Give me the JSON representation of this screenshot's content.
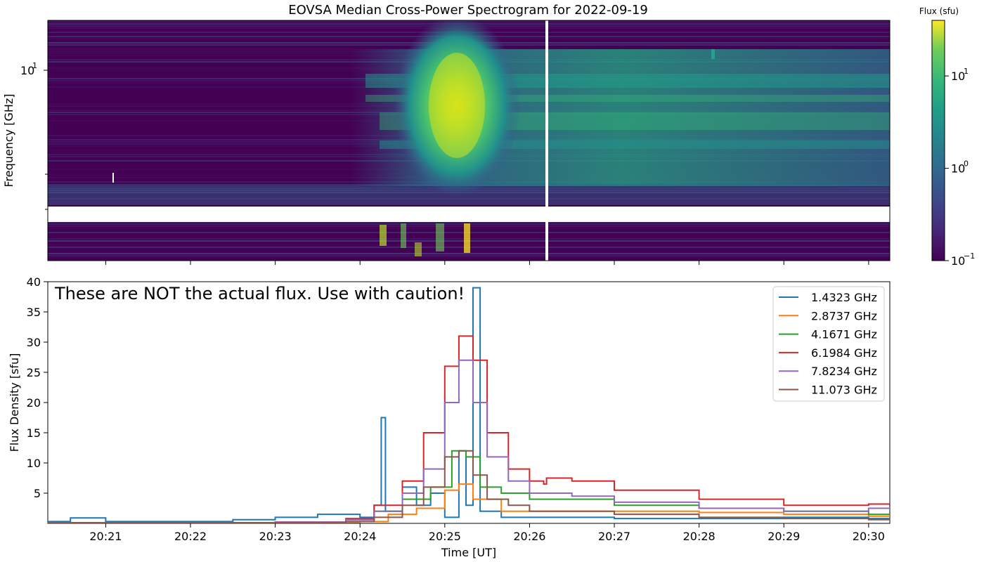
{
  "chart_data": [
    {
      "type": "heatmap",
      "title": "EOVSA Median Cross-Power Spectrogram for 2022-09-19",
      "ylabel": "Frequency [GHz]",
      "y_scale": "log",
      "y_tick_label": "10",
      "y_tick_exponent": "1",
      "x_range": [
        "20:20:19",
        "20:30:15"
      ],
      "colorbar": {
        "label": "Flux (sfu)",
        "scale": "log",
        "colormap": "viridis",
        "range": [
          0.1,
          40
        ],
        "ticks": [
          {
            "base": "10",
            "exp": "1",
            "value": 10
          },
          {
            "base": "10",
            "exp": "0",
            "value": 1
          },
          {
            "base": "10",
            "exp": "−1",
            "value": 0.1
          }
        ]
      },
      "features": {
        "peak_time": "20:25:08",
        "peak_frequency_ghz": 6.2,
        "masked_band": "white horizontal gap below ~2.5 GHz",
        "data_gap_time": "20:26:12"
      }
    },
    {
      "type": "line",
      "annotation": "These are NOT the actual flux. Use with caution!",
      "xlabel": "Time [UT]",
      "ylabel": "Flux Density [sfu]",
      "ylim": [
        0,
        40
      ],
      "y_ticks": [
        "5",
        "10",
        "15",
        "20",
        "25",
        "30",
        "35",
        "40"
      ],
      "x_ticks": [
        "20:21",
        "20:22",
        "20:23",
        "20:24",
        "20:25",
        "20:26",
        "20:27",
        "20:28",
        "20:29",
        "20:30"
      ],
      "x_range": [
        "20:20:19",
        "20:30:15"
      ],
      "legend_position": "upper right",
      "series": [
        {
          "name": "1.4323 GHz",
          "color": "#1f77b4",
          "points": [
            [
              "20:20:19",
              0.3
            ],
            [
              "20:20:35",
              0.9
            ],
            [
              "20:21",
              0.3
            ],
            [
              "20:22",
              0.3
            ],
            [
              "20:22:30",
              0.6
            ],
            [
              "20:23",
              1.0
            ],
            [
              "20:23:30",
              1.5
            ],
            [
              "20:24",
              1.0
            ],
            [
              "20:24:10",
              3.0
            ],
            [
              "20:24:15",
              17.5
            ],
            [
              "20:24:18",
              2.0
            ],
            [
              "20:24:30",
              6.0
            ],
            [
              "20:24:40",
              3.0
            ],
            [
              "20:24:50",
              5.0
            ],
            [
              "20:25:00",
              1.0
            ],
            [
              "20:25:10",
              12.0
            ],
            [
              "20:25:15",
              3.0
            ],
            [
              "20:25:20",
              39.0
            ],
            [
              "20:25:25",
              2.0
            ],
            [
              "20:25:40",
              1.0
            ],
            [
              "20:26",
              1.0
            ],
            [
              "20:27",
              0.8
            ],
            [
              "20:28",
              0.8
            ],
            [
              "20:29",
              1.0
            ],
            [
              "20:30",
              0.8
            ],
            [
              "20:30:15",
              0.8
            ]
          ]
        },
        {
          "name": "2.8737 GHz",
          "color": "#ff7f0e",
          "points": [
            [
              "20:20:19",
              0.1
            ],
            [
              "20:22",
              0.1
            ],
            [
              "20:23",
              0.2
            ],
            [
              "20:24",
              0.3
            ],
            [
              "20:24:20",
              1.5
            ],
            [
              "20:24:40",
              2.5
            ],
            [
              "20:25:00",
              5.5
            ],
            [
              "20:25:10",
              6.5
            ],
            [
              "20:25:20",
              4.0
            ],
            [
              "20:25:40",
              2.0
            ],
            [
              "20:26",
              2.0
            ],
            [
              "20:27",
              2.0
            ],
            [
              "20:28",
              1.8
            ],
            [
              "20:29",
              1.5
            ],
            [
              "20:30",
              1.2
            ],
            [
              "20:30:15",
              1.3
            ]
          ]
        },
        {
          "name": "4.1671 GHz",
          "color": "#2ca02c",
          "points": [
            [
              "20:20:19",
              0.1
            ],
            [
              "20:22",
              0.1
            ],
            [
              "20:23",
              0.2
            ],
            [
              "20:23:50",
              0.6
            ],
            [
              "20:24:10",
              2.0
            ],
            [
              "20:24:30",
              4.0
            ],
            [
              "20:24:50",
              6.0
            ],
            [
              "20:25:05",
              12.0
            ],
            [
              "20:25:15",
              11.0
            ],
            [
              "20:25:25",
              6.0
            ],
            [
              "20:25:40",
              5.0
            ],
            [
              "20:26",
              4.0
            ],
            [
              "20:26:30",
              4.0
            ],
            [
              "20:27",
              3.0
            ],
            [
              "20:28",
              2.5
            ],
            [
              "20:29",
              2.0
            ],
            [
              "20:30",
              1.5
            ],
            [
              "20:30:15",
              1.8
            ]
          ]
        },
        {
          "name": "6.1984 GHz",
          "color": "#d62728",
          "points": [
            [
              "20:20:19",
              0.1
            ],
            [
              "20:22",
              0.1
            ],
            [
              "20:23",
              0.2
            ],
            [
              "20:23:50",
              0.8
            ],
            [
              "20:24:10",
              3.0
            ],
            [
              "20:24:30",
              7.0
            ],
            [
              "20:24:45",
              15.0
            ],
            [
              "20:25:00",
              26.0
            ],
            [
              "20:25:10",
              31.0
            ],
            [
              "20:25:20",
              27.0
            ],
            [
              "20:25:30",
              15.0
            ],
            [
              "20:25:45",
              9.0
            ],
            [
              "20:26",
              7.0
            ],
            [
              "20:26:10",
              6.5
            ],
            [
              "20:26:12",
              7.5
            ],
            [
              "20:26:30",
              7.0
            ],
            [
              "20:27",
              5.5
            ],
            [
              "20:28",
              4.0
            ],
            [
              "20:29",
              3.0
            ],
            [
              "20:30",
              3.2
            ],
            [
              "20:30:15",
              2.8
            ]
          ]
        },
        {
          "name": "7.8234 GHz",
          "color": "#9467bd",
          "points": [
            [
              "20:20:19",
              0.1
            ],
            [
              "20:22",
              0.1
            ],
            [
              "20:23",
              0.2
            ],
            [
              "20:23:50",
              0.6
            ],
            [
              "20:24:10",
              2.0
            ],
            [
              "20:24:30",
              5.0
            ],
            [
              "20:24:45",
              9.0
            ],
            [
              "20:25:00",
              20.0
            ],
            [
              "20:25:10",
              27.0
            ],
            [
              "20:25:20",
              20.0
            ],
            [
              "20:25:30",
              11.0
            ],
            [
              "20:25:45",
              7.0
            ],
            [
              "20:26",
              5.0
            ],
            [
              "20:26:30",
              4.5
            ],
            [
              "20:27",
              3.5
            ],
            [
              "20:28",
              2.5
            ],
            [
              "20:29",
              2.0
            ],
            [
              "20:30",
              2.5
            ],
            [
              "20:30:15",
              2.2
            ]
          ]
        },
        {
          "name": "11.073 GHz",
          "color": "#8c564b",
          "points": [
            [
              "20:20:19",
              0.1
            ],
            [
              "20:22",
              0.1
            ],
            [
              "20:23",
              0.1
            ],
            [
              "20:23:50",
              0.3
            ],
            [
              "20:24:10",
              1.0
            ],
            [
              "20:24:30",
              3.0
            ],
            [
              "20:24:45",
              6.0
            ],
            [
              "20:25:00",
              11.0
            ],
            [
              "20:25:10",
              12.0
            ],
            [
              "20:25:20",
              8.0
            ],
            [
              "20:25:30",
              4.0
            ],
            [
              "20:25:45",
              3.0
            ],
            [
              "20:26",
              2.0
            ],
            [
              "20:27",
              1.5
            ],
            [
              "20:28",
              1.0
            ],
            [
              "20:29",
              0.8
            ],
            [
              "20:30",
              0.6
            ],
            [
              "20:30:15",
              0.7
            ]
          ]
        }
      ]
    }
  ]
}
